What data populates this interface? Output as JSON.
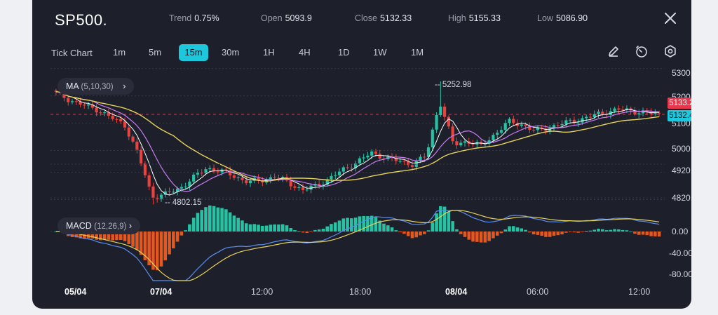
{
  "header": {
    "symbol": "SP500.",
    "stats": [
      {
        "label": "Trend",
        "value": "0.75%"
      },
      {
        "label": "Open",
        "value": "5093.9"
      },
      {
        "label": "Close",
        "value": "5132.33"
      },
      {
        "label": "High",
        "value": "5155.33"
      },
      {
        "label": "Low",
        "value": "5086.90"
      }
    ]
  },
  "toolbar": {
    "chart_type": "Tick Chart",
    "timeframes": [
      "1m",
      "5m",
      "15m",
      "30m",
      "1H",
      "4H",
      "1D",
      "1W",
      "1M"
    ],
    "active_timeframe": "15m",
    "tools": [
      "pencil-icon",
      "timer-icon",
      "settings-icon"
    ]
  },
  "indicators": {
    "ma": {
      "name": "MA",
      "params": "(5,10,30)"
    },
    "macd": {
      "name": "MACD",
      "params": "(12,26,9)"
    }
  },
  "price_axis": [
    "5300.00",
    "5200.00",
    "5100.00",
    "5000.00",
    "4920.00",
    "4820.00"
  ],
  "price_tags": {
    "bid": "5133.20",
    "ask": "5132.40"
  },
  "annotations": {
    "high": "5252.98",
    "low": "4802.15"
  },
  "macd_axis": [
    "0.00",
    "-40.00",
    "-80.00"
  ],
  "x_axis": [
    {
      "label": "05/04",
      "bold": true
    },
    {
      "label": "07/04",
      "bold": true
    },
    {
      "label": "12:00",
      "bold": false
    },
    {
      "label": "18:00",
      "bold": false
    },
    {
      "label": "08/04",
      "bold": true
    },
    {
      "label": "06:00",
      "bold": false
    },
    {
      "label": "12:00",
      "bold": false
    }
  ],
  "colors": {
    "up": "#26c2a3",
    "down": "#e8433f",
    "accent": "#1ec8dc",
    "ma5": "#ffffff",
    "ma10": "#c77df0",
    "ma30": "#e6d35a",
    "macd_line": "#5b8ff0",
    "signal_line": "#e6d35a",
    "hist_neg": "#e2581f"
  },
  "chart_data": {
    "type": "candlestick",
    "x": [
      "05/04",
      "07/04",
      "12:00",
      "18:00",
      "08/04",
      "06:00",
      "12:00"
    ],
    "price_series": {
      "points": [
        5210,
        5185,
        5165,
        5150,
        5120,
        5095,
        4985,
        4830,
        4840,
        4860,
        4900,
        4935,
        4925,
        4905,
        4885,
        4890,
        4905,
        4880,
        4855,
        4870,
        4900,
        4930,
        4960,
        4990,
        4975,
        4960,
        4950,
        4980,
        5180,
        5020,
        5035,
        5015,
        5060,
        5105,
        5095,
        5070,
        5085,
        5100,
        5110,
        5125,
        5140,
        5150,
        5145,
        5138,
        5133
      ],
      "high": 5252.98,
      "low": 4802.15,
      "last": 5132.4
    },
    "ylim": [
      4780,
      5320
    ],
    "macd": {
      "axis": [
        0,
        -40,
        -80
      ]
    },
    "legend": [
      "MA (5,10,30)",
      "MACD (12,26,9)"
    ]
  }
}
